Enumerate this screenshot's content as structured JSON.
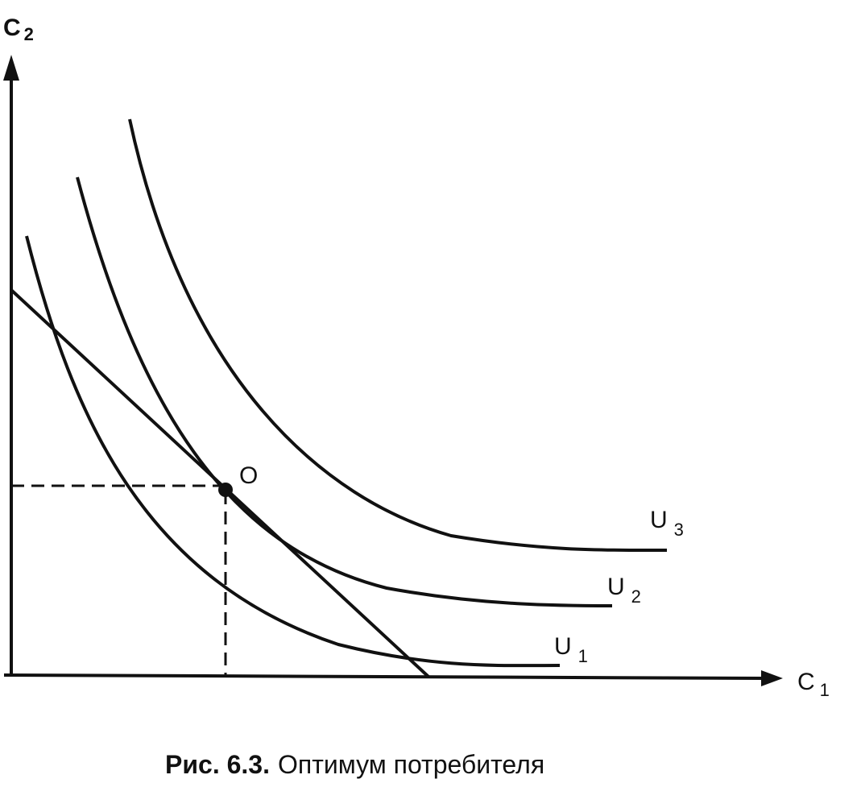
{
  "axes": {
    "y_label": "C",
    "y_subscript": "2",
    "x_label": "C",
    "x_subscript": "1"
  },
  "point": {
    "label": "O"
  },
  "curves": [
    {
      "label": "U",
      "subscript": "1"
    },
    {
      "label": "U",
      "subscript": "2"
    },
    {
      "label": "U",
      "subscript": "3"
    }
  ],
  "caption": {
    "number": "Рис. 6.3.",
    "text": "Оптимум потребителя"
  }
}
